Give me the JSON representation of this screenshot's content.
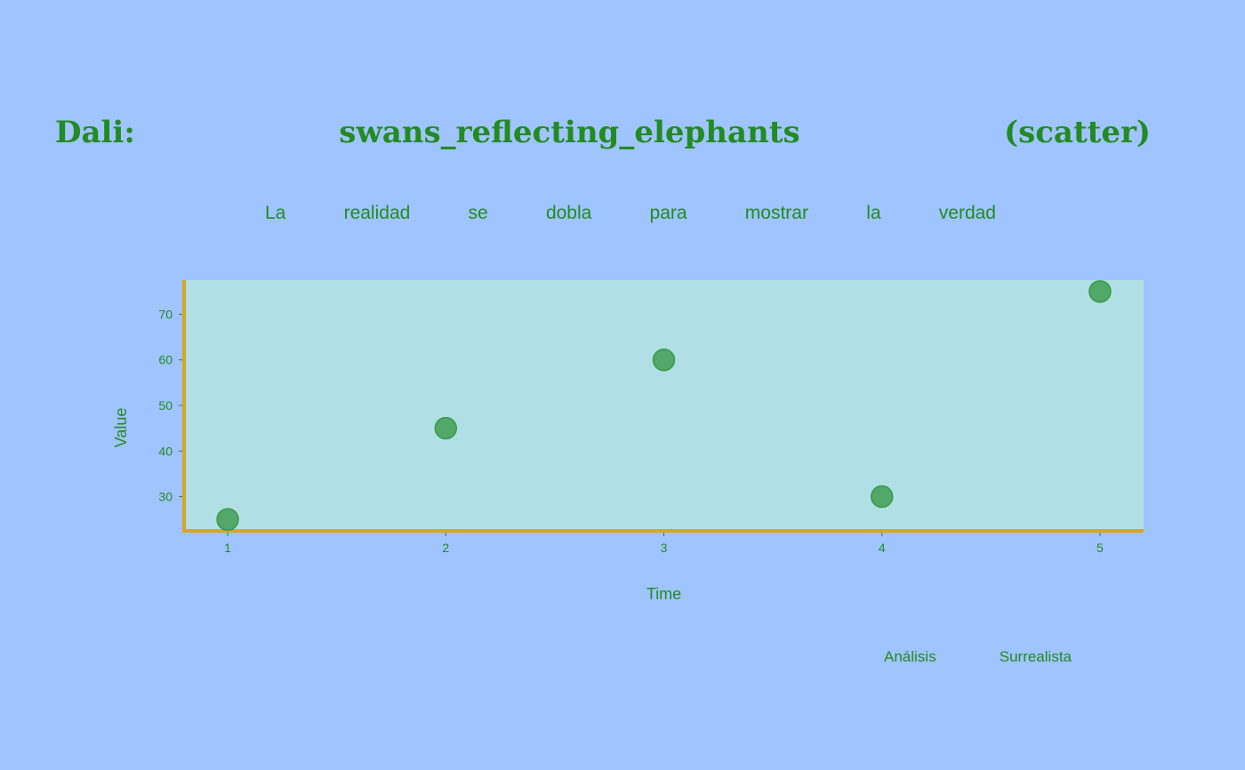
{
  "title_words": [
    "Dali:",
    "swans_reflecting_elephants",
    "(scatter)"
  ],
  "subtitle_words": [
    "La",
    "realidad",
    "se",
    "dobla",
    "para",
    "mostrar",
    "la",
    "verdad"
  ],
  "footer_words": [
    "Análisis",
    "Surrealista"
  ],
  "colors": {
    "background": "#a0c4ff",
    "plot_background": "#b0e0e6",
    "axis": "#daa520",
    "text": "#228b22",
    "marker": "#3a9a48"
  },
  "chart_data": {
    "type": "scatter",
    "x": [
      1,
      2,
      3,
      4,
      5
    ],
    "y": [
      25,
      45,
      60,
      30,
      75
    ],
    "xlabel": "Time",
    "ylabel": "Value",
    "xlim": [
      0.8,
      5.2
    ],
    "ylim": [
      22.5,
      77.5
    ],
    "x_ticks": [
      1,
      2,
      3,
      4,
      5
    ],
    "y_ticks": [
      30,
      40,
      50,
      60,
      70
    ],
    "grid": false
  }
}
